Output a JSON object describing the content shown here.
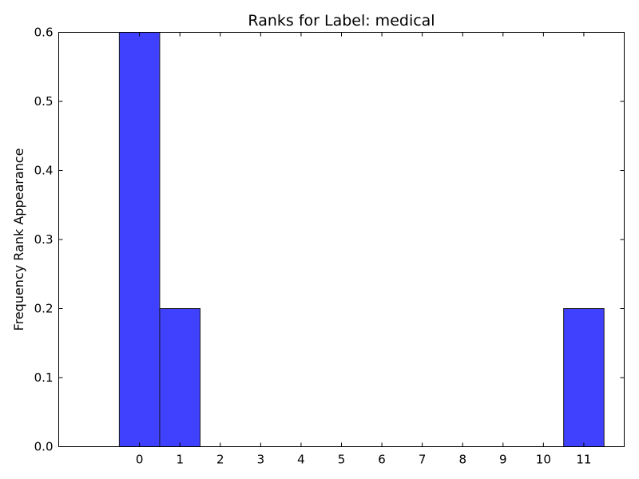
{
  "chart_data": {
    "type": "bar",
    "title": "Ranks for Label: medical",
    "xlabel": "",
    "ylabel": "Frequency Rank Appearance",
    "categories": [
      "0",
      "1",
      "2",
      "3",
      "4",
      "5",
      "6",
      "7",
      "8",
      "9",
      "10",
      "11"
    ],
    "values": [
      0.6,
      0.2,
      0,
      0,
      0,
      0,
      0,
      0,
      0,
      0,
      0,
      0.2
    ],
    "xlim": [
      -2,
      12
    ],
    "ylim": [
      0,
      0.6
    ],
    "yticks": [
      "0.0",
      "0.1",
      "0.2",
      "0.3",
      "0.4",
      "0.5",
      "0.6"
    ],
    "bar_color": "#4040ff",
    "grid": false
  }
}
